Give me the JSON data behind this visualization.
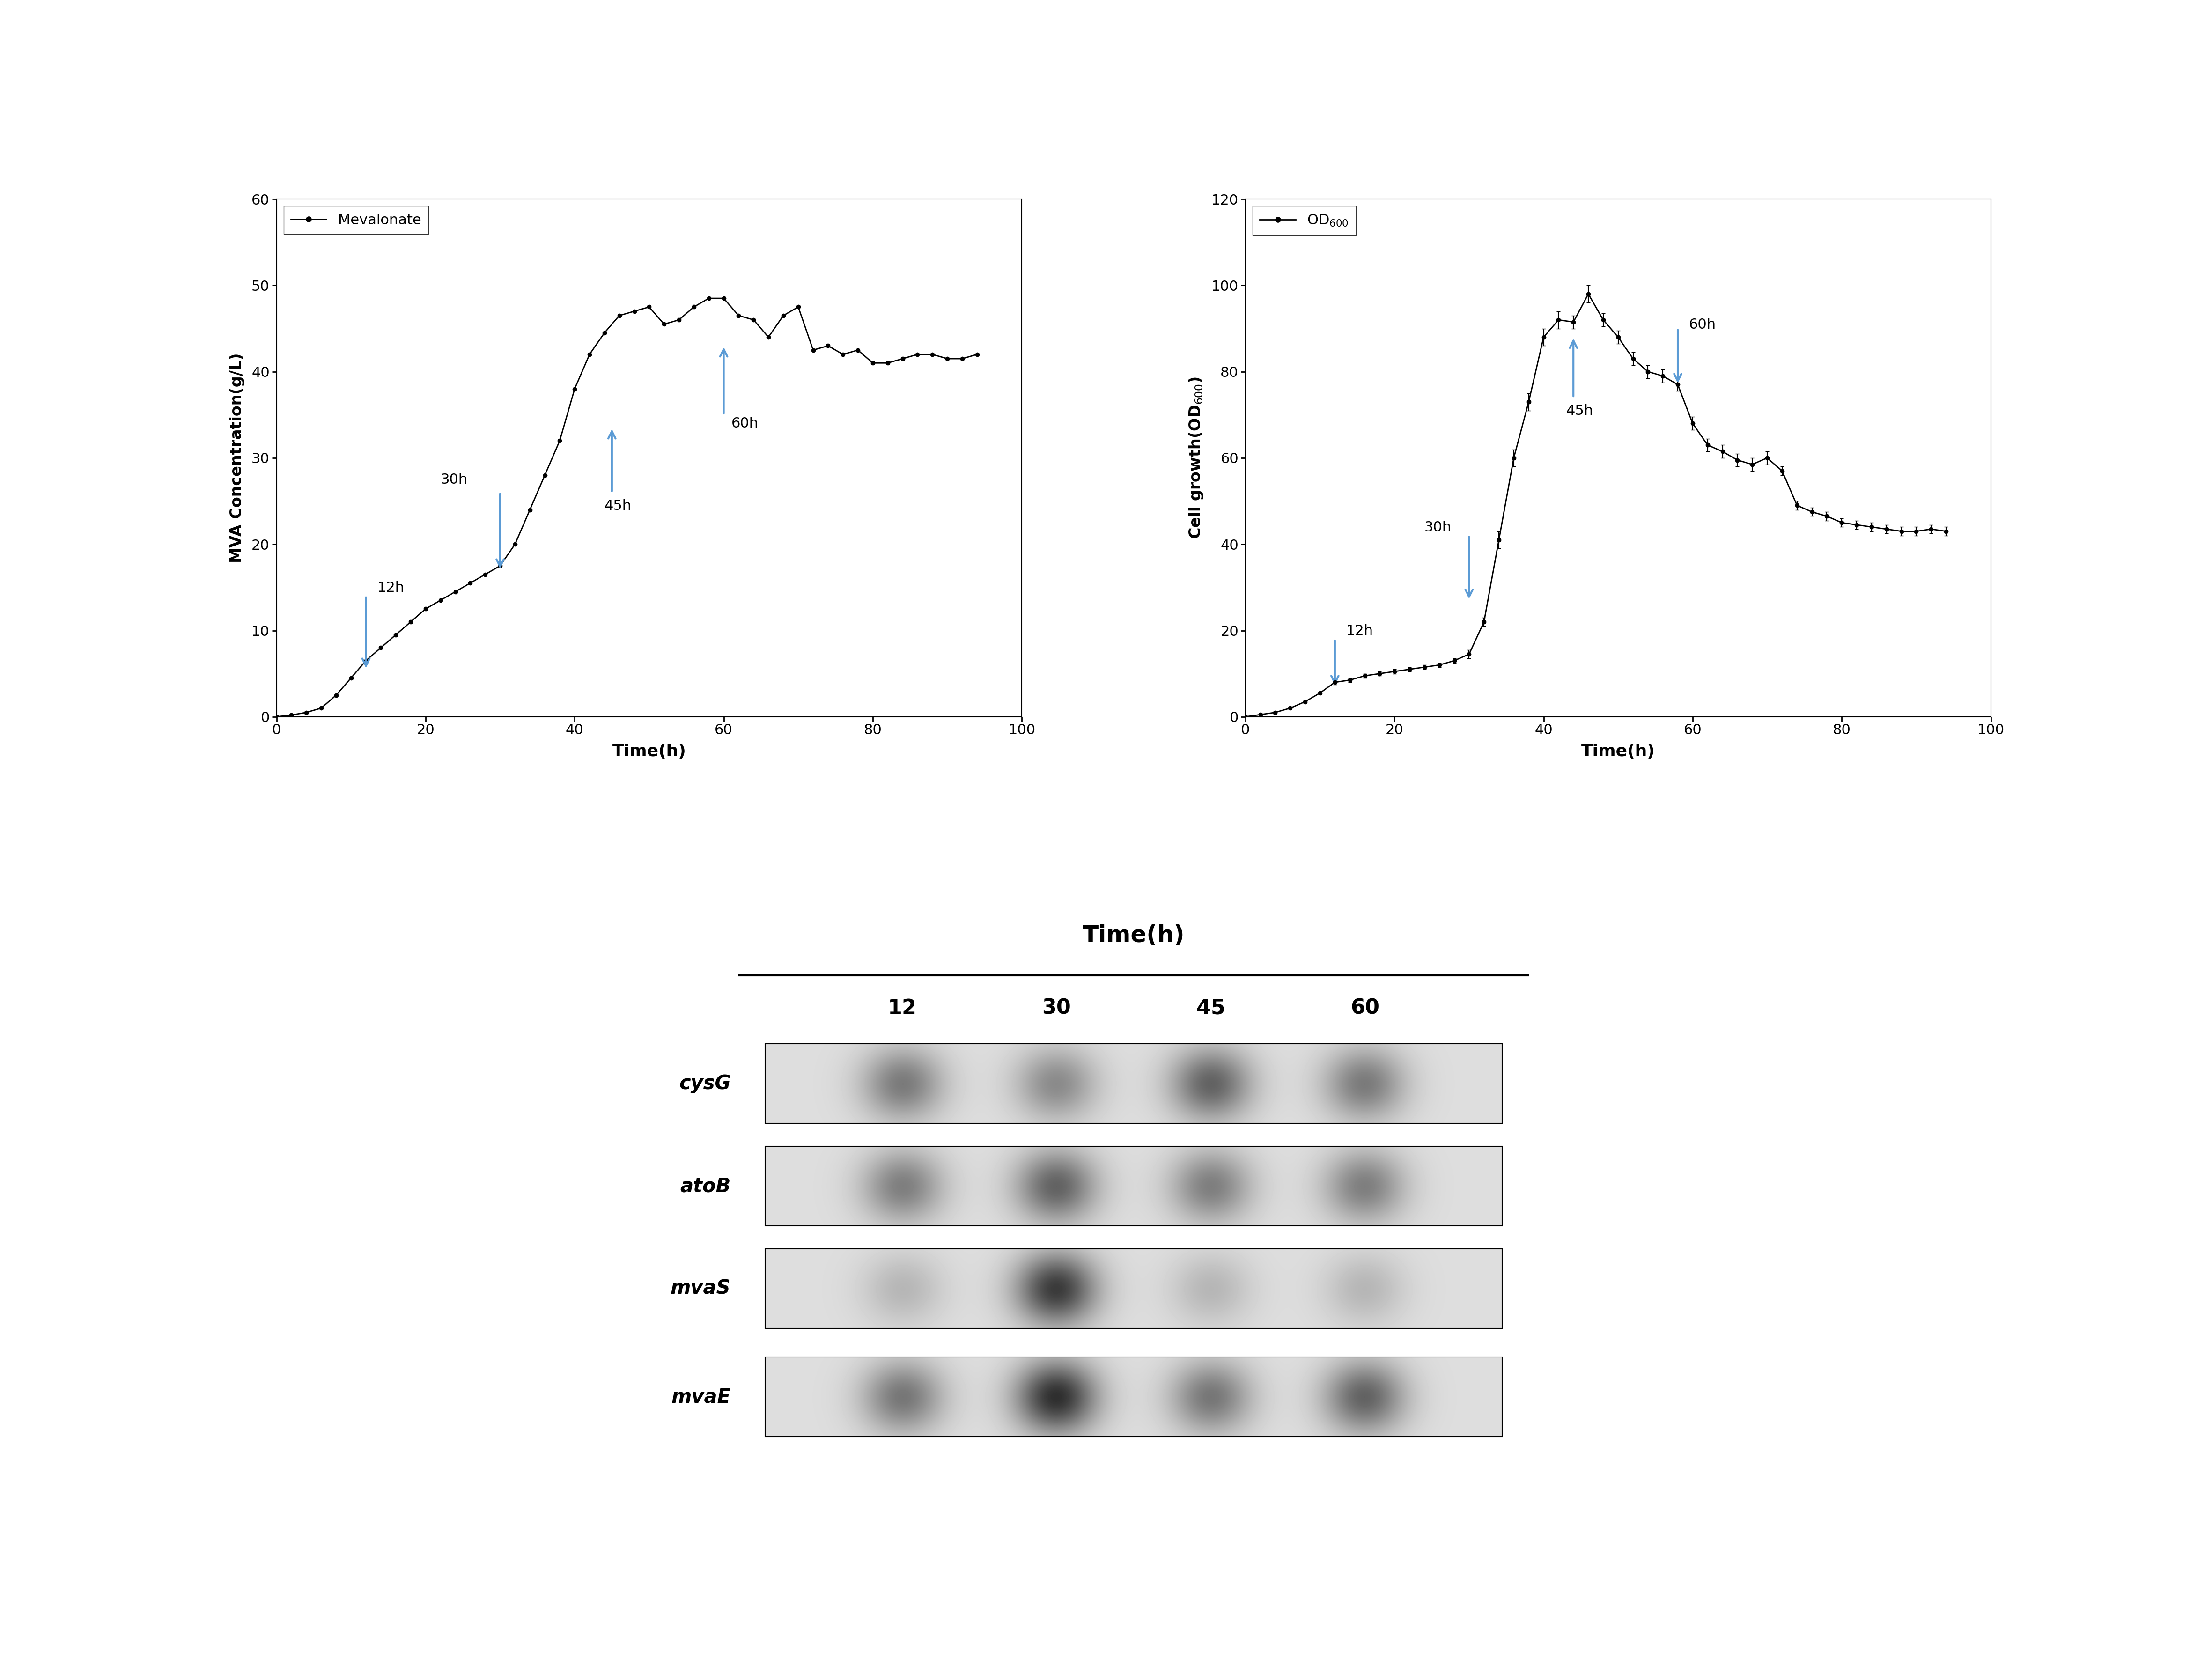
{
  "mva_time": [
    0,
    2,
    4,
    6,
    8,
    10,
    12,
    14,
    16,
    18,
    20,
    22,
    24,
    26,
    28,
    30,
    32,
    34,
    36,
    38,
    40,
    42,
    44,
    46,
    48,
    50,
    52,
    54,
    56,
    58,
    60,
    62,
    64,
    66,
    68,
    70,
    72,
    74,
    76,
    78,
    80,
    82,
    84,
    86,
    88,
    90,
    92,
    94
  ],
  "mva_values": [
    0.0,
    0.2,
    0.5,
    1.0,
    2.5,
    4.5,
    6.5,
    8.0,
    9.5,
    11.0,
    12.5,
    13.5,
    14.5,
    15.5,
    16.5,
    17.5,
    20.0,
    24.0,
    28.0,
    32.0,
    38.0,
    42.0,
    44.5,
    46.5,
    47.0,
    47.5,
    45.5,
    46.0,
    47.5,
    48.5,
    48.5,
    46.5,
    46.0,
    44.0,
    46.5,
    47.5,
    42.5,
    43.0,
    42.0,
    42.5,
    41.0,
    41.0,
    41.5,
    42.0,
    42.0,
    41.5,
    41.5,
    42.0
  ],
  "od_time": [
    0,
    2,
    4,
    6,
    8,
    10,
    12,
    14,
    16,
    18,
    20,
    22,
    24,
    26,
    28,
    30,
    32,
    34,
    36,
    38,
    40,
    42,
    44,
    46,
    48,
    50,
    52,
    54,
    56,
    58,
    60,
    62,
    64,
    66,
    68,
    70,
    72,
    74,
    76,
    78,
    80,
    82,
    84,
    86,
    88,
    90,
    92,
    94
  ],
  "od_values": [
    0.0,
    0.5,
    1.0,
    2.0,
    3.5,
    5.5,
    8.0,
    8.5,
    9.5,
    10.0,
    10.5,
    11.0,
    11.5,
    12.0,
    13.0,
    14.5,
    22.0,
    41.0,
    60.0,
    73.0,
    88.0,
    92.0,
    91.5,
    98.0,
    92.0,
    88.0,
    83.0,
    80.0,
    79.0,
    77.0,
    68.0,
    63.0,
    61.5,
    59.5,
    58.5,
    60.0,
    57.0,
    49.0,
    47.5,
    46.5,
    45.0,
    44.5,
    44.0,
    43.5,
    43.0,
    43.0,
    43.5,
    43.0
  ],
  "od_errors": [
    0.0,
    0.0,
    0.0,
    0.0,
    0.0,
    0.0,
    0.5,
    0.5,
    0.5,
    0.5,
    0.5,
    0.5,
    0.5,
    0.5,
    0.5,
    1.0,
    1.0,
    2.0,
    2.0,
    2.0,
    2.0,
    2.0,
    1.5,
    2.0,
    1.5,
    1.5,
    1.5,
    1.5,
    1.5,
    1.5,
    1.5,
    1.5,
    1.5,
    1.5,
    1.5,
    1.5,
    1.0,
    1.0,
    1.0,
    1.0,
    1.0,
    1.0,
    1.0,
    1.0,
    1.0,
    1.0,
    1.0,
    1.0
  ],
  "arrow_color": "#5b9bd5",
  "line_color": "#000000",
  "background_color": "#ffffff",
  "gel_genes": [
    "cysG",
    "atoB",
    "mvaS",
    "mvaE"
  ],
  "gel_timepoints": [
    "12",
    "30",
    "45",
    "60"
  ],
  "gel_band_intensity": {
    "cysG": [
      0.5,
      0.42,
      0.62,
      0.5
    ],
    "atoB": [
      0.48,
      0.62,
      0.48,
      0.48
    ],
    "mvaS": [
      0.2,
      0.82,
      0.2,
      0.2
    ],
    "mvaE": [
      0.52,
      0.88,
      0.52,
      0.62
    ]
  }
}
